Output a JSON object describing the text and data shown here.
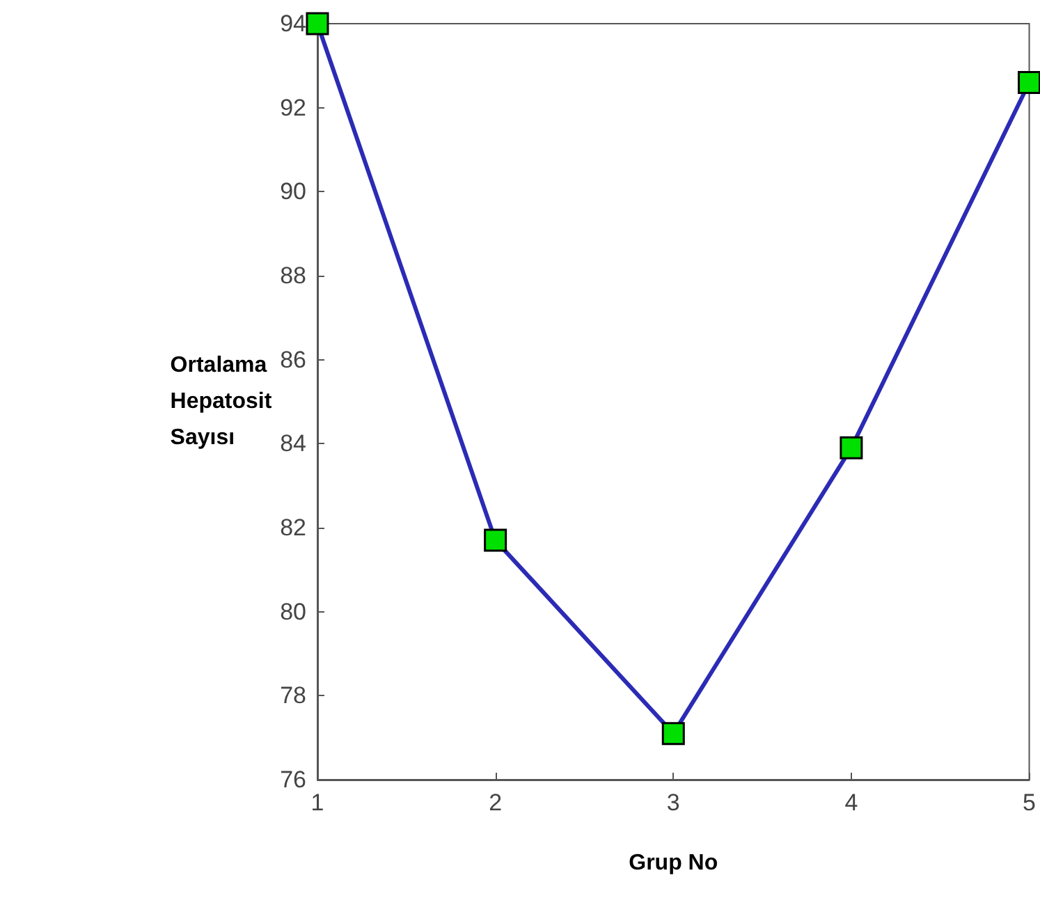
{
  "chart_data": {
    "type": "line",
    "xlabel": "Grup No",
    "ylabel": "Ortalama Hepatosit Sayısı",
    "x": [
      1,
      2,
      3,
      4,
      5
    ],
    "series": [
      {
        "color": "#2b2bb5",
        "colors": [
          "#00e000",
          "#00e000",
          "#00e000",
          "#00e000",
          "#00e000"
        ],
        "values": [
          94,
          81.7,
          77.1,
          83.9,
          92.6
        ]
      }
    ],
    "xlim": [
      1,
      5
    ],
    "xticks": [
      1,
      2,
      3,
      4,
      5
    ],
    "ylim": [
      76,
      94
    ],
    "yticks": [
      76,
      78,
      80,
      82,
      84,
      86,
      88,
      90,
      92,
      94
    ],
    "marker": "square",
    "line_style": "solid"
  }
}
